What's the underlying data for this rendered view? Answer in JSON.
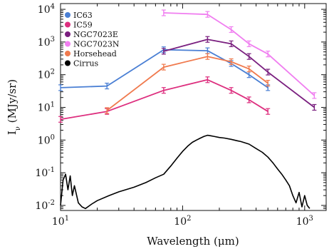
{
  "chart_data": {
    "type": "line",
    "title": "",
    "xlabel": "Wavelength (μm)",
    "ylabel": "I_ν (MJy/sr)",
    "x_scale": "log",
    "y_scale": "log",
    "xlim": [
      10,
      1500
    ],
    "ylim": [
      0.007,
      15000
    ],
    "x_ticks": [
      {
        "value": 10,
        "base": "10",
        "exp": "1"
      },
      {
        "value": 100,
        "base": "10",
        "exp": "2"
      },
      {
        "value": 1000,
        "base": "10",
        "exp": "3"
      }
    ],
    "y_ticks": [
      {
        "value": 0.01,
        "base": "10",
        "exp": "-2"
      },
      {
        "value": 0.1,
        "base": "10",
        "exp": "-1"
      },
      {
        "value": 1,
        "base": "10",
        "exp": "0"
      },
      {
        "value": 10,
        "base": "10",
        "exp": "1"
      },
      {
        "value": 100,
        "base": "10",
        "exp": "2"
      },
      {
        "value": 1000,
        "base": "10",
        "exp": "3"
      },
      {
        "value": 10000,
        "base": "10",
        "exp": "4"
      }
    ],
    "legend_position": "top-left",
    "grid": false,
    "series": [
      {
        "name": "IC63",
        "color": "#4a7fd4",
        "x": [
          10,
          24,
          70,
          160,
          250,
          350,
          500
        ],
        "y": [
          40,
          45,
          580,
          540,
          220,
          100,
          40
        ]
      },
      {
        "name": "IC59",
        "color": "#dd2e7e",
        "x": [
          10,
          24,
          70,
          160,
          250,
          350,
          500
        ],
        "y": [
          4.3,
          7.5,
          33,
          70,
          33,
          17,
          7.5
        ]
      },
      {
        "name": "NGC7023E",
        "color": "#7a1f7f",
        "x": [
          70,
          160,
          250,
          350,
          500,
          1200
        ],
        "y": [
          520,
          1200,
          880,
          360,
          120,
          10
        ]
      },
      {
        "name": "NGC7023N",
        "color": "#f07ef0",
        "x": [
          70,
          160,
          250,
          350,
          500,
          1200
        ],
        "y": [
          7800,
          7000,
          2400,
          880,
          430,
          23
        ]
      },
      {
        "name": "Horsehead",
        "color": "#f07a4e",
        "x": [
          24,
          70,
          160,
          250,
          350,
          500
        ],
        "y": [
          8,
          170,
          360,
          250,
          150,
          55
        ]
      },
      {
        "name": "Cirrus",
        "color": "#000000",
        "x": [
          10,
          10.5,
          11,
          11.5,
          12,
          12.5,
          13,
          14,
          15,
          16,
          18,
          20,
          25,
          30,
          40,
          50,
          60,
          70,
          80,
          90,
          100,
          110,
          120,
          130,
          140,
          150,
          160,
          170,
          180,
          200,
          220,
          250,
          280,
          300,
          350,
          400,
          450,
          500,
          550,
          600,
          650,
          700,
          750,
          800,
          850,
          900,
          950,
          1000,
          1050,
          1100
        ],
        "y": [
          0.01,
          0.06,
          0.09,
          0.03,
          0.08,
          0.02,
          0.04,
          0.012,
          0.009,
          0.008,
          0.011,
          0.014,
          0.02,
          0.026,
          0.036,
          0.05,
          0.07,
          0.09,
          0.16,
          0.28,
          0.45,
          0.65,
          0.85,
          1.0,
          1.15,
          1.3,
          1.4,
          1.35,
          1.3,
          1.2,
          1.15,
          1.05,
          0.95,
          0.9,
          0.75,
          0.55,
          0.42,
          0.3,
          0.2,
          0.13,
          0.09,
          0.06,
          0.04,
          0.02,
          0.012,
          0.025,
          0.009,
          0.02,
          0.01,
          0.008
        ]
      }
    ]
  }
}
